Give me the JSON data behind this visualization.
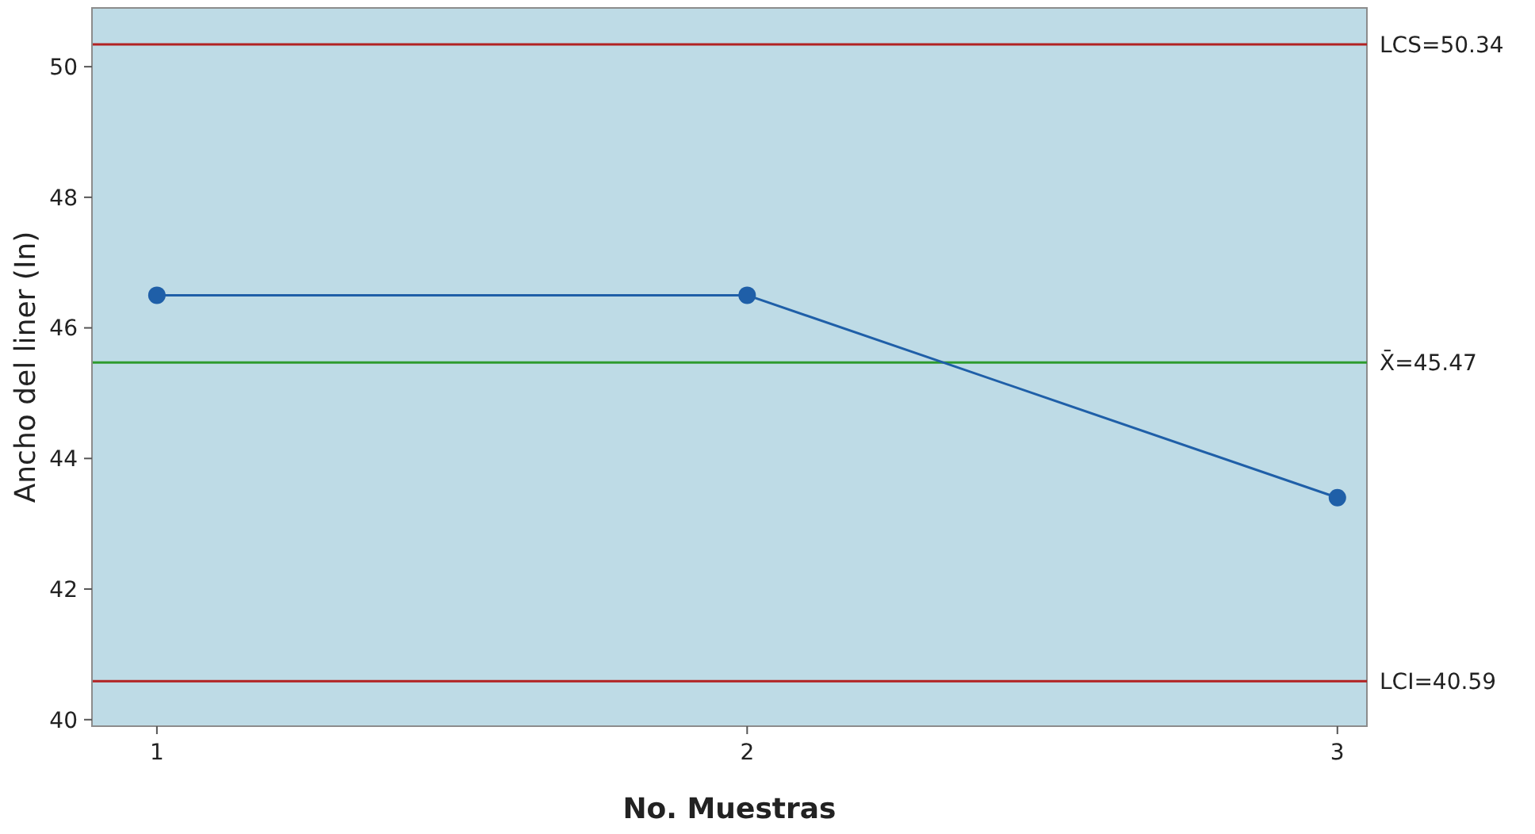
{
  "chart_data": {
    "type": "line",
    "xlabel": "No. Muestras",
    "ylabel": "Ancho del liner (In)",
    "x": [
      1,
      2,
      3
    ],
    "series": [
      {
        "color": "#1f5fa8",
        "values": [
          46.5,
          46.5,
          43.4
        ]
      }
    ],
    "xlim": [
      0.89,
      3.05
    ],
    "xticks": [
      1,
      2,
      3
    ],
    "ylim": [
      39.9,
      50.9
    ],
    "yticks": [
      40,
      42,
      44,
      46,
      48,
      50
    ],
    "ref_lines": [
      {
        "axis": "y",
        "value": 50.34,
        "label": "LCS=50.34",
        "color": "#b22222"
      },
      {
        "axis": "y",
        "value": 45.47,
        "label": "X̄=45.47",
        "color": "#2e9b2e"
      },
      {
        "axis": "y",
        "value": 40.59,
        "label": "LCI=40.59",
        "color": "#b22222"
      }
    ],
    "grid": false,
    "marker": "circle",
    "line_style": "solid"
  }
}
